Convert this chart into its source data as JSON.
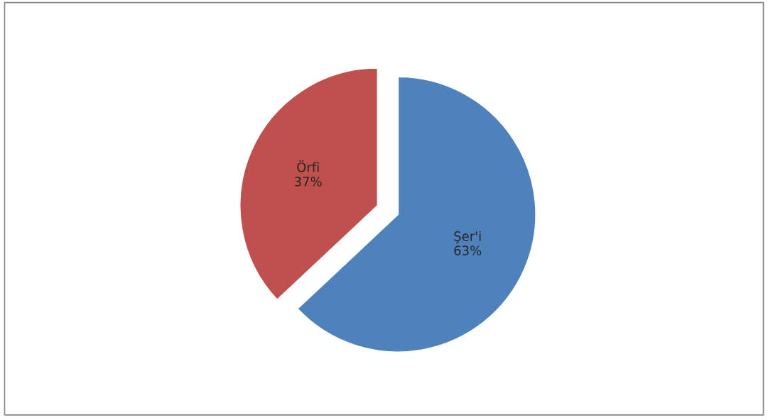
{
  "chart_data": {
    "type": "pie",
    "categories": [
      "Şer'i",
      "Örfi"
    ],
    "values": [
      63,
      37
    ],
    "colors": [
      "#4f81bd",
      "#c0504d"
    ],
    "value_labels": [
      "63%",
      "37%"
    ],
    "legend": false
  }
}
